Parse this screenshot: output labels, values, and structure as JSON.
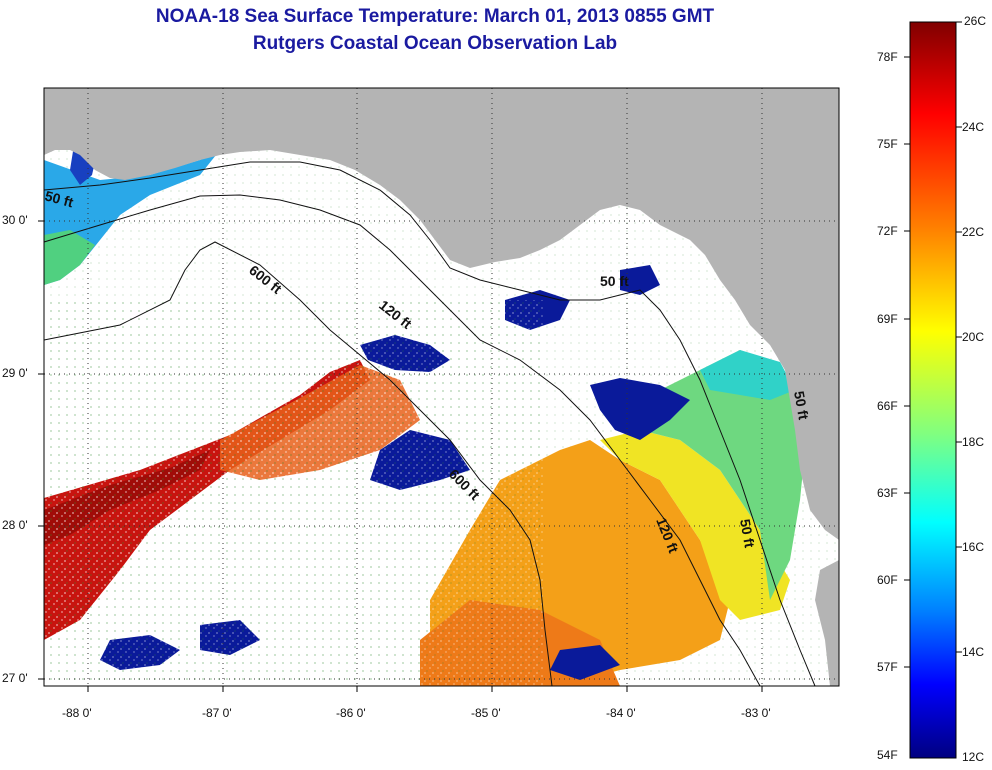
{
  "title": "NOAA-18 Sea Surface Temperature:  March 01, 2013 0855 GMT",
  "subtitle": "Rutgers Coastal Ocean Observation Lab",
  "map": {
    "lon_range": [
      -88.3,
      -82.5
    ],
    "lat_range": [
      26.97,
      30.88
    ],
    "lon_ticks": [
      {
        "value": -88,
        "label": "-88 0'"
      },
      {
        "value": -87,
        "label": "-87 0'"
      },
      {
        "value": -86,
        "label": "-86 0'"
      },
      {
        "value": -85,
        "label": "-85 0'"
      },
      {
        "value": -84,
        "label": "-84 0'"
      },
      {
        "value": -83,
        "label": "-83 0'"
      }
    ],
    "lat_ticks": [
      {
        "value": 30,
        "label": "30 0'"
      },
      {
        "value": 29,
        "label": "29 0'"
      },
      {
        "value": 28,
        "label": "28 0'"
      },
      {
        "value": 27,
        "label": "27 0'"
      }
    ],
    "depth_labels": [
      "50 ft",
      "600 ft",
      "120 ft",
      "50 ft",
      "600 ft",
      "120 ft",
      "50 ft",
      "50 ft"
    ],
    "colors": {
      "land": "#b4b4b4",
      "cloud": "#ffffff",
      "grid": "#333333"
    }
  },
  "colorbar": {
    "celsius_labels": [
      "26C",
      "24C",
      "22C",
      "20C",
      "18C",
      "16C",
      "14C",
      "12C"
    ],
    "fahrenheit_labels": [
      "78F",
      "75F",
      "72F",
      "69F",
      "66F",
      "63F",
      "60F",
      "57F",
      "54F"
    ],
    "colors": [
      "#800000",
      "#ff0000",
      "#ff8000",
      "#ffff00",
      "#80ff80",
      "#00ffff",
      "#0080ff",
      "#0000ff",
      "#000080"
    ]
  }
}
